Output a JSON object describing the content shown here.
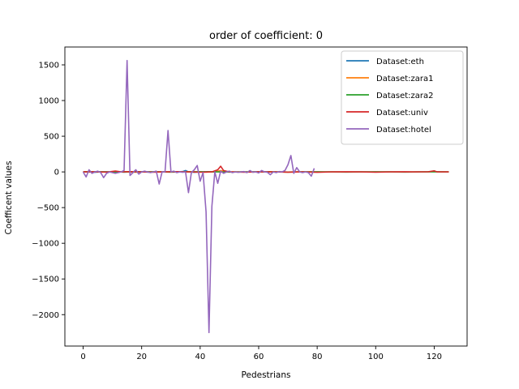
{
  "chart_data": {
    "type": "line",
    "title": "order of coefficient: 0",
    "xlabel": "Pedestrians",
    "ylabel": "Coefficent values",
    "xlim": [
      -6.25,
      131.25
    ],
    "ylim": [
      -2440,
      1750
    ],
    "xticks": [
      0,
      20,
      40,
      60,
      80,
      100,
      120
    ],
    "yticks": [
      -2000,
      -1500,
      -1000,
      -500,
      0,
      500,
      1000,
      1500
    ],
    "xtick_labels": [
      "0",
      "20",
      "40",
      "60",
      "80",
      "100",
      "120"
    ],
    "ytick_labels": [
      "−2000",
      "−1500",
      "−1000",
      "−500",
      "0",
      "500",
      "1000",
      "1500"
    ],
    "grid": false,
    "legend_position": "top-right",
    "series": [
      {
        "name": "Dataset:eth",
        "color": "#1f77b4",
        "points": [
          [
            0,
            0
          ],
          [
            2,
            5
          ],
          [
            4,
            -5
          ],
          [
            6,
            0
          ],
          [
            8,
            3
          ],
          [
            10,
            0
          ],
          [
            12,
            2
          ],
          [
            14,
            -3
          ],
          [
            16,
            0
          ],
          [
            18,
            4
          ],
          [
            20,
            0
          ],
          [
            22,
            -2
          ],
          [
            24,
            0
          ],
          [
            26,
            3
          ],
          [
            28,
            0
          ],
          [
            30,
            2
          ],
          [
            32,
            0
          ],
          [
            34,
            5
          ],
          [
            35,
            20
          ],
          [
            36,
            0
          ],
          [
            38,
            -5
          ],
          [
            40,
            0
          ],
          [
            42,
            3
          ],
          [
            44,
            0
          ]
        ]
      },
      {
        "name": "Dataset:zara1",
        "color": "#ff7f0e",
        "points": [
          [
            0,
            0
          ],
          [
            3,
            2
          ],
          [
            6,
            -2
          ],
          [
            9,
            0
          ],
          [
            12,
            3
          ],
          [
            15,
            0
          ],
          [
            18,
            -3
          ],
          [
            21,
            0
          ],
          [
            24,
            2
          ],
          [
            27,
            0
          ],
          [
            30,
            -2
          ],
          [
            33,
            0
          ],
          [
            36,
            3
          ],
          [
            39,
            0
          ],
          [
            42,
            -2
          ],
          [
            45,
            0
          ],
          [
            47,
            20
          ],
          [
            49,
            0
          ],
          [
            52,
            2
          ],
          [
            55,
            0
          ],
          [
            58,
            -2
          ],
          [
            61,
            0
          ],
          [
            64,
            2
          ],
          [
            67,
            0
          ],
          [
            70,
            -2
          ],
          [
            73,
            0
          ],
          [
            76,
            2
          ],
          [
            79,
            0
          ]
        ]
      },
      {
        "name": "Dataset:zara2",
        "color": "#2ca02c",
        "points": [
          [
            0,
            0
          ],
          [
            5,
            2
          ],
          [
            10,
            -2
          ],
          [
            15,
            0
          ],
          [
            20,
            2
          ],
          [
            25,
            0
          ],
          [
            30,
            -2
          ],
          [
            35,
            0
          ],
          [
            40,
            2
          ],
          [
            45,
            0
          ],
          [
            50,
            -2
          ],
          [
            55,
            0
          ],
          [
            60,
            2
          ],
          [
            65,
            0
          ],
          [
            70,
            -2
          ],
          [
            75,
            0
          ],
          [
            80,
            2
          ],
          [
            85,
            0
          ],
          [
            90,
            -2
          ],
          [
            95,
            0
          ],
          [
            100,
            2
          ],
          [
            105,
            0
          ],
          [
            110,
            -2
          ],
          [
            115,
            0
          ],
          [
            120,
            2
          ],
          [
            125,
            0
          ]
        ]
      },
      {
        "name": "Dataset:univ",
        "color": "#d62728",
        "points": [
          [
            0,
            0
          ],
          [
            4,
            3
          ],
          [
            8,
            -3
          ],
          [
            11,
            12
          ],
          [
            13,
            0
          ],
          [
            16,
            4
          ],
          [
            20,
            0
          ],
          [
            24,
            -3
          ],
          [
            28,
            0
          ],
          [
            32,
            4
          ],
          [
            36,
            0
          ],
          [
            40,
            -4
          ],
          [
            44,
            0
          ],
          [
            46,
            30
          ],
          [
            47,
            80
          ],
          [
            48,
            20
          ],
          [
            50,
            0
          ],
          [
            55,
            -4
          ],
          [
            60,
            2
          ],
          [
            65,
            0
          ],
          [
            70,
            -3
          ],
          [
            75,
            0
          ],
          [
            80,
            -5
          ],
          [
            85,
            0
          ],
          [
            90,
            2
          ],
          [
            95,
            0
          ],
          [
            100,
            -3
          ],
          [
            105,
            0
          ],
          [
            110,
            2
          ],
          [
            114,
            0
          ],
          [
            118,
            3
          ],
          [
            120,
            15
          ],
          [
            121,
            0
          ],
          [
            125,
            0
          ]
        ]
      },
      {
        "name": "Dataset:hotel",
        "color": "#9467bd",
        "points": [
          [
            0,
            0
          ],
          [
            1,
            -70
          ],
          [
            2,
            30
          ],
          [
            3,
            -20
          ],
          [
            4,
            0
          ],
          [
            5,
            10
          ],
          [
            6,
            -10
          ],
          [
            7,
            -80
          ],
          [
            8,
            -20
          ],
          [
            9,
            0
          ],
          [
            10,
            -10
          ],
          [
            11,
            -20
          ],
          [
            12,
            -10
          ],
          [
            13,
            0
          ],
          [
            14,
            20
          ],
          [
            15,
            1560
          ],
          [
            16,
            -50
          ],
          [
            17,
            -10
          ],
          [
            18,
            30
          ],
          [
            19,
            -30
          ],
          [
            20,
            0
          ],
          [
            21,
            10
          ],
          [
            22,
            0
          ],
          [
            23,
            -10
          ],
          [
            24,
            0
          ],
          [
            25,
            10
          ],
          [
            26,
            -170
          ],
          [
            27,
            0
          ],
          [
            28,
            0
          ],
          [
            29,
            580
          ],
          [
            30,
            0
          ],
          [
            31,
            10
          ],
          [
            32,
            -10
          ],
          [
            33,
            0
          ],
          [
            34,
            -5
          ],
          [
            35,
            0
          ],
          [
            36,
            -290
          ],
          [
            37,
            -10
          ],
          [
            38,
            30
          ],
          [
            39,
            90
          ],
          [
            40,
            -130
          ],
          [
            41,
            -10
          ],
          [
            42,
            -560
          ],
          [
            43,
            -2250
          ],
          [
            44,
            -480
          ],
          [
            45,
            0
          ],
          [
            46,
            -160
          ],
          [
            47,
            10
          ],
          [
            48,
            -20
          ],
          [
            49,
            0
          ],
          [
            50,
            10
          ],
          [
            51,
            -10
          ],
          [
            52,
            0
          ],
          [
            53,
            -5
          ],
          [
            54,
            0
          ],
          [
            55,
            5
          ],
          [
            56,
            -10
          ],
          [
            57,
            20
          ],
          [
            58,
            -5
          ],
          [
            59,
            0
          ],
          [
            60,
            -15
          ],
          [
            61,
            20
          ],
          [
            62,
            0
          ],
          [
            63,
            -5
          ],
          [
            64,
            -40
          ],
          [
            65,
            0
          ],
          [
            66,
            -10
          ],
          [
            67,
            5
          ],
          [
            68,
            0
          ],
          [
            69,
            20
          ],
          [
            70,
            100
          ],
          [
            71,
            230
          ],
          [
            72,
            -20
          ],
          [
            73,
            60
          ],
          [
            74,
            0
          ],
          [
            75,
            -10
          ],
          [
            76,
            0
          ],
          [
            77,
            -10
          ],
          [
            78,
            -60
          ],
          [
            79,
            50
          ]
        ]
      }
    ]
  }
}
